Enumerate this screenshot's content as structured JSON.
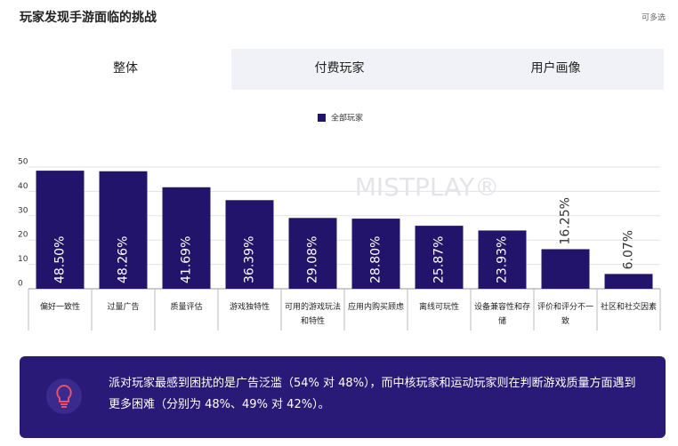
{
  "header": {
    "title": "玩家发现手游面临的挑战",
    "note": "可多选"
  },
  "tabs": [
    "整体",
    "付费玩家",
    "用户画像"
  ],
  "watermark": "MISTPLAY®",
  "chart_data": {
    "type": "bar",
    "legend": "全部玩家",
    "categories": [
      "偏好一致性",
      "过量广告",
      "质量评估",
      "游戏独特性",
      "可用的游戏玩法和特性",
      "应用内购买顾虑",
      "离线可玩性",
      "设备兼容性和存储",
      "评价和评分不一致",
      "社区和社交因素"
    ],
    "values": [
      48.5,
      48.26,
      41.69,
      36.39,
      29.08,
      28.8,
      25.87,
      23.93,
      16.25,
      6.07
    ],
    "value_labels": [
      "48.50%",
      "48.26%",
      "41.69%",
      "36.39%",
      "29.08%",
      "28.80%",
      "25.87%",
      "23.93%",
      "16.25%",
      "6.07%"
    ],
    "color": "#22136b",
    "ylim": [
      0,
      50
    ],
    "yticks": [
      0,
      10,
      20,
      30,
      40,
      50
    ],
    "grid": true
  },
  "insight": "派对玩家最感到困扰的是广告泛滥（54% 对 48%），而中核玩家和运动玩家则在判断游戏质量方面遇到更多困难（分别为 48%、49% 对 42%）。"
}
